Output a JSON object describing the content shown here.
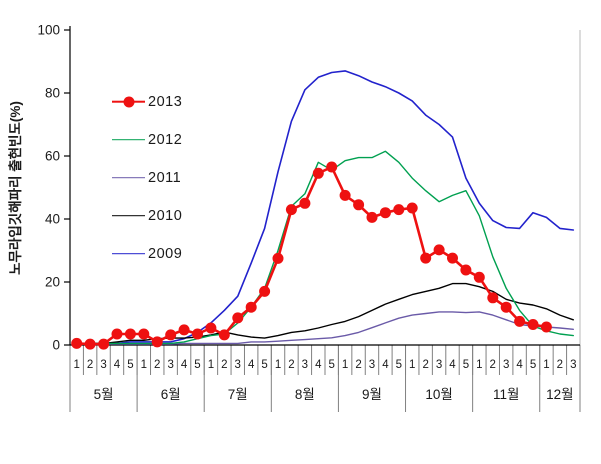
{
  "figure": {
    "background": "#ffffff"
  },
  "chart_data": {
    "type": "line",
    "title": "",
    "xlabel": "",
    "ylabel": "노무라입깃해파리 출현빈도(%)",
    "ylim": [
      0,
      100
    ],
    "yticks": [
      "0",
      "20",
      "40",
      "60",
      "80",
      "100"
    ],
    "grid": false,
    "legend_position": "upper-left-inside",
    "x_axis": {
      "months": [
        {
          "label": "5월",
          "weeks": [
            "1",
            "2",
            "3",
            "4",
            "5"
          ]
        },
        {
          "label": "6월",
          "weeks": [
            "1",
            "2",
            "3",
            "4",
            "5"
          ]
        },
        {
          "label": "7월",
          "weeks": [
            "1",
            "2",
            "3",
            "4",
            "5"
          ]
        },
        {
          "label": "8월",
          "weeks": [
            "1",
            "2",
            "3",
            "4",
            "5"
          ]
        },
        {
          "label": "9월",
          "weeks": [
            "1",
            "2",
            "3",
            "4",
            "5"
          ]
        },
        {
          "label": "10월",
          "weeks": [
            "1",
            "2",
            "3",
            "4",
            "5"
          ]
        },
        {
          "label": "11월",
          "weeks": [
            "1",
            "2",
            "3",
            "4",
            "5"
          ]
        },
        {
          "label": "12월",
          "weeks": [
            "1",
            "2",
            "3"
          ]
        }
      ]
    },
    "series": [
      {
        "name": "2013",
        "color": "#ee1111",
        "marker": "circle",
        "marker_size": 5.5,
        "line_width": 2.6,
        "values": [
          0.5,
          0.3,
          0.3,
          3.5,
          3.5,
          3.5,
          1,
          3.2,
          4.8,
          3.5,
          5.4,
          3.2,
          8.6,
          12,
          17,
          27.5,
          43,
          45,
          54.5,
          56.5,
          47.5,
          44.5,
          40.5,
          42,
          43,
          43.5,
          27.6,
          30.2,
          27.6,
          23.8,
          21.5,
          15,
          12,
          7.5,
          6.5,
          5.7,
          null,
          null
        ]
      },
      {
        "name": "2012",
        "color": "#00a050",
        "marker": "none",
        "line_width": 1.4,
        "values": [
          0.5,
          0.5,
          0.5,
          0.5,
          0.5,
          0.5,
          0.5,
          0.5,
          1,
          2,
          3,
          3.5,
          7,
          12,
          18,
          30,
          44,
          48,
          58,
          55.5,
          58.5,
          59.5,
          59.5,
          61.5,
          58,
          53,
          49,
          45.5,
          47.5,
          49,
          41,
          28,
          18,
          11,
          6,
          4.5,
          3.5,
          3
        ]
      },
      {
        "name": "2011",
        "color": "#6a5aa8",
        "marker": "none",
        "line_width": 1.4,
        "values": [
          0.3,
          0.3,
          0.3,
          0.3,
          0.3,
          0.3,
          0.3,
          0.3,
          0.5,
          0.5,
          0.5,
          0.5,
          0.5,
          1,
          1,
          1.2,
          1.5,
          1.7,
          2,
          2.3,
          3,
          4,
          5.5,
          7,
          8.5,
          9.5,
          10,
          10.5,
          10.5,
          10.3,
          10.5,
          9.5,
          8,
          6.5,
          6,
          5.7,
          5.4,
          5
        ]
      },
      {
        "name": "2010",
        "color": "#000000",
        "marker": "none",
        "line_width": 1.4,
        "values": [
          0.5,
          0.5,
          0.5,
          1,
          1.5,
          1.5,
          2,
          2.2,
          2.2,
          2.5,
          3.2,
          4.1,
          3.2,
          2.5,
          2.2,
          3,
          4,
          4.5,
          5.4,
          6.5,
          7.5,
          9,
          11,
          13,
          14.5,
          16,
          17,
          18,
          19.5,
          19.5,
          18.5,
          17,
          14.5,
          13.3,
          12.7,
          11.5,
          9.5,
          8
        ]
      },
      {
        "name": "2009",
        "color": "#2222cc",
        "marker": "none",
        "line_width": 1.6,
        "values": [
          0.5,
          0.5,
          0.5,
          0.5,
          1,
          1,
          1,
          1,
          2,
          4,
          7,
          11,
          15.5,
          26,
          37,
          55,
          71,
          81,
          85,
          86.5,
          87,
          85.5,
          83.5,
          82,
          80,
          77.5,
          73,
          70,
          66,
          53,
          45,
          39.5,
          37.3,
          37,
          42,
          40.5,
          37,
          36.5
        ]
      }
    ]
  }
}
